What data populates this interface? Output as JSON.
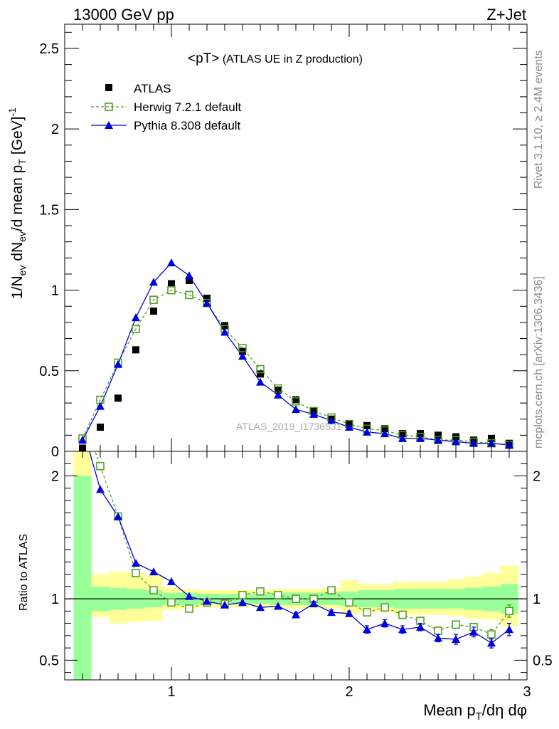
{
  "header": {
    "left": "13000 GeV pp",
    "right": "Z+Jet"
  },
  "side": {
    "rivet": "Rivet 3.1.10, ≥ 2.4M events",
    "mcplots": "mcplots.cern.ch [arXiv:1306.3436]"
  },
  "watermark": "ATLAS_2019_I1736531",
  "colors": {
    "atlas": "#000000",
    "herwig": "#4c9a1c",
    "pythia": "#0000dd",
    "band_inner": "#99ff99",
    "band_outer": "#ffff99"
  },
  "chart_data": [
    {
      "type": "scatter",
      "title_main": "<pT>",
      "title_sub": " (ATLAS UE in Z production)",
      "ylabel": "1/N_ev dN_ev/d mean p_T [GeV]^-1",
      "xlim": [
        0.4,
        3.0
      ],
      "ylim": [
        0,
        2.65
      ],
      "yticks": [
        "0",
        "0.5",
        "1",
        "1.5",
        "2",
        "2.5"
      ],
      "legend_position": "top-left",
      "legend": [
        "ATLAS",
        "Herwig 7.2.1 default",
        "Pythia 8.308 default"
      ],
      "x": [
        0.5,
        0.6,
        0.7,
        0.8,
        0.9,
        1.0,
        1.1,
        1.2,
        1.3,
        1.4,
        1.5,
        1.6,
        1.7,
        1.8,
        1.9,
        2.0,
        2.1,
        2.2,
        2.3,
        2.4,
        2.5,
        2.6,
        2.7,
        2.8,
        2.9
      ],
      "series": [
        {
          "name": "ATLAS",
          "values": [
            0.02,
            0.15,
            0.33,
            0.63,
            0.87,
            1.04,
            1.06,
            0.95,
            0.78,
            0.62,
            0.48,
            0.38,
            0.32,
            0.25,
            0.2,
            0.17,
            0.16,
            0.14,
            0.11,
            0.11,
            0.1,
            0.09,
            0.07,
            0.08,
            0.05
          ]
        },
        {
          "name": "Herwig 7.2.1 default",
          "values": [
            0.08,
            0.32,
            0.55,
            0.76,
            0.94,
            1.0,
            0.97,
            0.92,
            0.76,
            0.64,
            0.51,
            0.39,
            0.31,
            0.25,
            0.21,
            0.17,
            0.14,
            0.13,
            0.1,
            0.09,
            0.07,
            0.07,
            0.06,
            0.05,
            0.04
          ]
        },
        {
          "name": "Pythia 8.308 default",
          "values": [
            0.07,
            0.28,
            0.54,
            0.83,
            1.05,
            1.17,
            1.09,
            0.92,
            0.74,
            0.59,
            0.43,
            0.35,
            0.26,
            0.23,
            0.19,
            0.15,
            0.12,
            0.11,
            0.08,
            0.08,
            0.07,
            0.06,
            0.05,
            0.05,
            0.04
          ]
        }
      ]
    },
    {
      "type": "line",
      "ylabel": "Ratio to ATLAS",
      "xlabel": "Mean p_T/dη dφ",
      "xlim": [
        0.4,
        3.0
      ],
      "ylim": [
        0.34,
        2.2
      ],
      "yticks": [
        "0.5",
        "1",
        "2"
      ],
      "xticks": [
        "1",
        "2",
        "3"
      ],
      "x_edges": [
        0.45,
        0.55,
        0.65,
        0.75,
        0.85,
        0.95,
        1.05,
        1.15,
        1.25,
        1.35,
        1.45,
        1.55,
        1.65,
        1.75,
        1.85,
        1.95,
        2.05,
        2.15,
        2.25,
        2.35,
        2.45,
        2.55,
        2.65,
        2.75,
        2.85,
        2.95
      ],
      "band_inner": {
        "lo": [
          0.34,
          0.9,
          0.91,
          0.92,
          0.93,
          0.95,
          0.95,
          0.96,
          0.96,
          0.96,
          0.96,
          0.95,
          0.95,
          0.95,
          0.95,
          0.94,
          0.93,
          0.93,
          0.92,
          0.92,
          0.92,
          0.92,
          0.91,
          0.9,
          0.88
        ],
        "hi": [
          2.0,
          1.1,
          1.09,
          1.08,
          1.07,
          1.05,
          1.05,
          1.04,
          1.04,
          1.04,
          1.04,
          1.05,
          1.05,
          1.05,
          1.05,
          1.06,
          1.07,
          1.07,
          1.08,
          1.08,
          1.08,
          1.08,
          1.09,
          1.1,
          1.12
        ]
      },
      "band_outer": {
        "lo": [
          0.34,
          0.85,
          0.8,
          0.81,
          0.82,
          0.91,
          0.92,
          0.93,
          0.93,
          0.93,
          0.93,
          0.92,
          0.92,
          0.92,
          0.92,
          0.87,
          0.89,
          0.89,
          0.87,
          0.87,
          0.87,
          0.86,
          0.84,
          0.83,
          0.78
        ],
        "hi": [
          2.2,
          1.2,
          1.22,
          1.21,
          1.19,
          1.09,
          1.08,
          1.07,
          1.07,
          1.07,
          1.07,
          1.08,
          1.08,
          1.08,
          1.09,
          1.15,
          1.12,
          1.12,
          1.14,
          1.14,
          1.14,
          1.16,
          1.18,
          1.21,
          1.27
        ]
      },
      "x": [
        0.5,
        0.6,
        0.7,
        0.8,
        0.9,
        1.0,
        1.1,
        1.2,
        1.3,
        1.4,
        1.5,
        1.6,
        1.7,
        1.8,
        1.9,
        2.0,
        2.1,
        2.2,
        2.3,
        2.4,
        2.5,
        2.6,
        2.7,
        2.8,
        2.9
      ],
      "series": [
        {
          "name": "Herwig 7.2.1 default",
          "values": [
            2.5,
            2.08,
            1.67,
            1.21,
            1.07,
            0.97,
            0.92,
            0.97,
            0.96,
            1.03,
            1.06,
            1.03,
            1.0,
            1.0,
            1.07,
            0.97,
            0.89,
            0.93,
            0.87,
            0.82,
            0.74,
            0.79,
            0.77,
            0.71,
            0.9
          ],
          "errors": [
            0,
            0,
            0,
            0,
            0,
            0,
            0,
            0,
            0,
            0,
            0,
            0,
            0,
            0,
            0.02,
            0.02,
            0.02,
            0.02,
            0.03,
            0.03,
            0.03,
            0.03,
            0.03,
            0.04,
            0.05
          ]
        },
        {
          "name": "Pythia 8.308 default",
          "values": [
            2.4,
            1.89,
            1.67,
            1.29,
            1.22,
            1.14,
            1.02,
            0.98,
            0.95,
            0.97,
            0.93,
            0.94,
            0.87,
            0.96,
            0.89,
            0.88,
            0.75,
            0.8,
            0.75,
            0.77,
            0.68,
            0.67,
            0.73,
            0.64,
            0.75
          ],
          "errors": [
            0,
            0,
            0,
            0,
            0,
            0,
            0,
            0,
            0,
            0,
            0,
            0,
            0.02,
            0.02,
            0.02,
            0.02,
            0.03,
            0.03,
            0.03,
            0.03,
            0.03,
            0.04,
            0.04,
            0.04,
            0.05
          ]
        }
      ]
    }
  ]
}
